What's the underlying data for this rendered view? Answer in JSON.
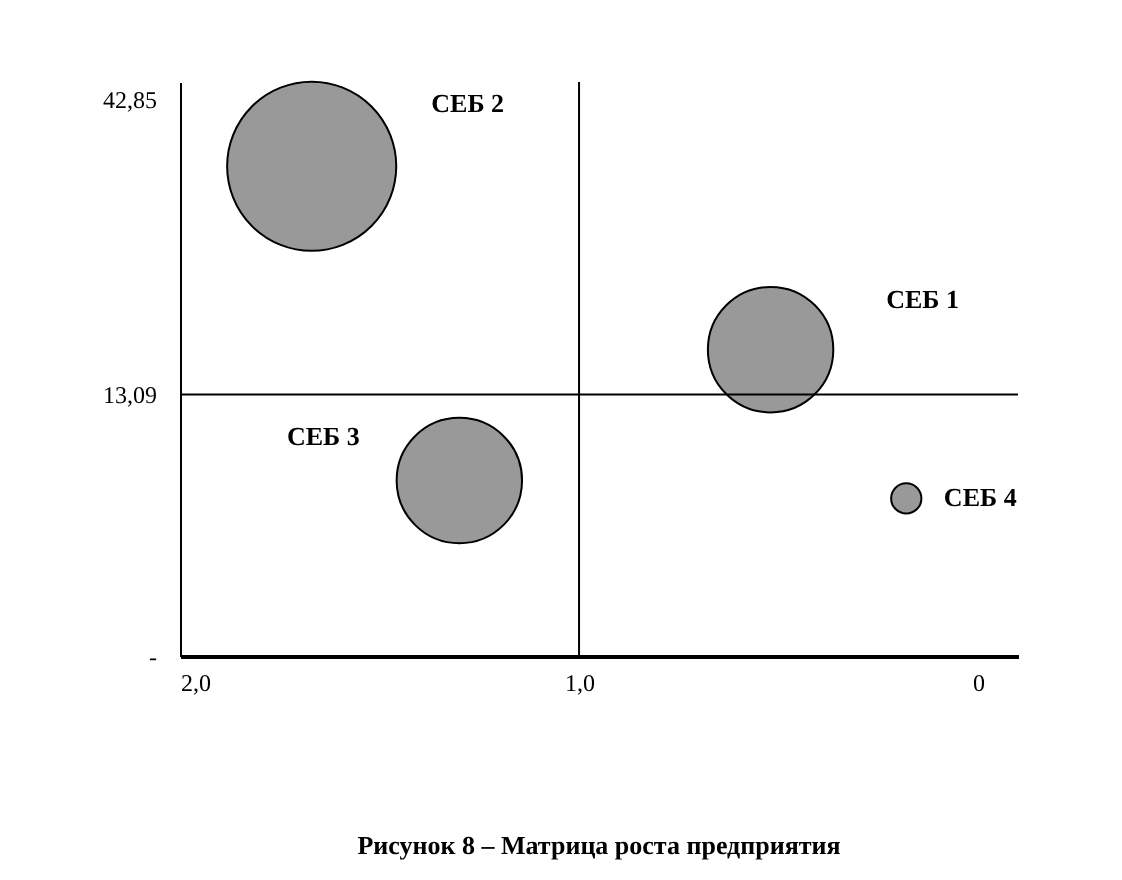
{
  "chart_data": {
    "type": "bubble",
    "title": "Рисунок 8 – Матрица роста предприятия",
    "series": [
      {
        "name": "СЕБ 1",
        "color": "#999999",
        "x": [
          0.52
        ],
        "values": [
          17.6
        ],
        "sizes": [
          0.55
        ]
      },
      {
        "name": "СЕБ 2",
        "color": "#999999",
        "x": [
          1.67
        ],
        "values": [
          36.1
        ],
        "sizes": [
          1
        ]
      },
      {
        "name": "СЕБ 3",
        "color": "#999999",
        "x": [
          1.3
        ],
        "values": [
          4.4
        ],
        "sizes": [
          0.55
        ]
      },
      {
        "name": "СЕБ 4",
        "color": "#999999",
        "x": [
          0.18
        ],
        "values": [
          2.6
        ],
        "sizes": [
          0.032
        ]
      }
    ],
    "xlim": [
      2.0,
      -0.1
    ],
    "xticks": [
      {
        "value": 2,
        "label": "2,0"
      },
      {
        "value": 1,
        "label": "1,0"
      },
      {
        "value": 0,
        "label": "0"
      }
    ],
    "ylim": [
      -13.3,
      44.6
    ],
    "yticks": [
      {
        "value": -13.3,
        "label": "-"
      },
      {
        "value": 13.09,
        "label": "13,09"
      },
      {
        "value": 42.85,
        "label": "42,85"
      }
    ],
    "ref_lines": [
      {
        "axis": "y",
        "value": 13.09,
        "color": "#000000"
      },
      {
        "axis": "x",
        "value": 1.0,
        "color": "#000000"
      }
    ],
    "grid": false,
    "legend": false
  }
}
